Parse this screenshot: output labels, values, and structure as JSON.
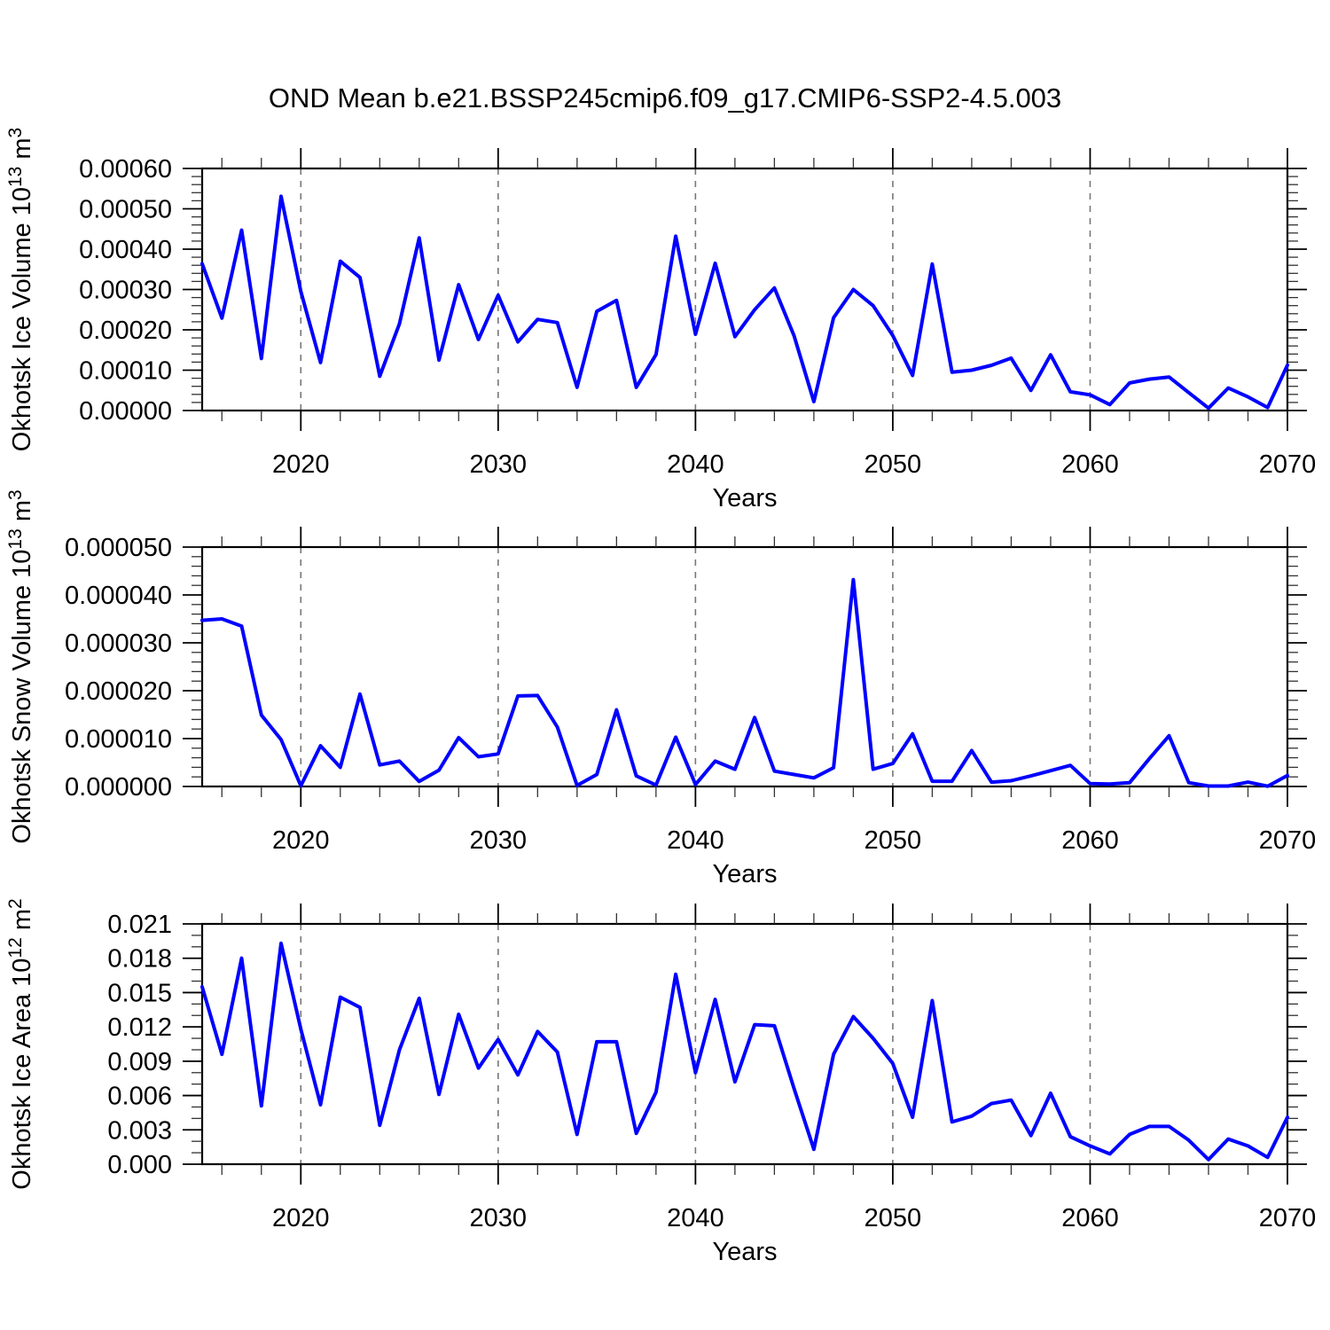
{
  "title": "OND Mean b.e21.BSSP245cmip6.f09_g17.CMIP6-SSP2-4.5.003",
  "line_color": "#0000ff",
  "gridline_color": "#777777",
  "axis_color": "#000000",
  "chart_data": {
    "type": "line",
    "x_label": "Years",
    "x_range": [
      2015,
      2070
    ],
    "x": [
      2015,
      2016,
      2017,
      2018,
      2019,
      2020,
      2021,
      2022,
      2023,
      2024,
      2025,
      2026,
      2027,
      2028,
      2029,
      2030,
      2031,
      2032,
      2033,
      2034,
      2035,
      2036,
      2037,
      2038,
      2039,
      2040,
      2041,
      2042,
      2043,
      2044,
      2045,
      2046,
      2047,
      2048,
      2049,
      2050,
      2051,
      2052,
      2053,
      2054,
      2055,
      2056,
      2057,
      2058,
      2059,
      2060,
      2061,
      2062,
      2063,
      2064,
      2065,
      2066,
      2067,
      2068,
      2069,
      2070
    ],
    "x_ticks_major": [
      2020,
      2030,
      2040,
      2050,
      2060,
      2070
    ],
    "x_minor_step": 2,
    "gridline_years": [
      2020,
      2030,
      2040,
      2050,
      2060
    ],
    "legend": "none",
    "grid": "vertical-dashed",
    "panels": [
      {
        "id": "ice-volume",
        "ylabel_text": "Okhotsk Ice Volume 10^13 m^3",
        "ylabel_parts": [
          {
            "t": "Okhotsk Ice Volume 10"
          },
          {
            "t": "13",
            "sup": true
          },
          {
            "t": " m"
          },
          {
            "t": "3",
            "sup": true
          }
        ],
        "ylim": [
          0,
          0.0006
        ],
        "ytick_step": 0.0001,
        "ytick_minor_step": 2e-05,
        "tick_decimals": 5,
        "values": [
          0.000364,
          0.000229,
          0.000447,
          0.000129,
          0.000531,
          0.000295,
          0.000119,
          0.00037,
          0.00033,
          8.5e-05,
          0.000215,
          0.000428,
          0.000125,
          0.000312,
          0.000176,
          0.000286,
          0.00017,
          0.000226,
          0.000218,
          5.75e-05,
          0.000246,
          0.000273,
          5.75e-05,
          0.000139,
          0.000432,
          0.000189,
          0.000365,
          0.000183,
          0.00025,
          0.000304,
          0.000185,
          2.2e-05,
          0.00023,
          0.0003,
          0.00026,
          0.000186,
          8.7e-05,
          0.000363,
          9.5e-05,
          0.0001,
          0.000112,
          0.00013,
          5e-05,
          0.000138,
          4.63e-05,
          3.9e-05,
          1.47e-05,
          6.84e-05,
          7.78e-05,
          8.3e-05,
          4.45e-05,
          5.9e-06,
          5.59e-05,
          3.38e-05,
          7.4e-06,
          0.0001125
        ]
      },
      {
        "id": "snow-volume",
        "ylabel_text": "Okhotsk Snow Volume 10^13 m^3",
        "ylabel_parts": [
          {
            "t": "Okhotsk Snow Volume 10"
          },
          {
            "t": "13",
            "sup": true
          },
          {
            "t": " m"
          },
          {
            "t": "3",
            "sup": true
          }
        ],
        "ylim": [
          0,
          5e-05
        ],
        "ytick_step": 1e-05,
        "ytick_minor_step": 2e-06,
        "tick_decimals": 6,
        "values": [
          3.47e-05,
          3.5e-05,
          3.35e-05,
          1.49e-05,
          9.8e-06,
          1.5e-07,
          8.5e-06,
          4e-06,
          1.93e-05,
          4.5e-06,
          5.3e-06,
          1.05e-06,
          3.4e-06,
          1.02e-05,
          6.2e-06,
          6.8e-06,
          1.89e-05,
          1.9e-05,
          1.24e-05,
          2e-07,
          2.5e-06,
          1.6e-05,
          2.2e-06,
          3e-07,
          1.03e-05,
          4e-07,
          5.3e-06,
          3.6e-06,
          1.44e-05,
          3.2e-06,
          2.5e-06,
          1.8e-06,
          3.9e-06,
          4.32e-05,
          3.6e-06,
          4.8e-06,
          1.1e-05,
          1.1e-06,
          1.1e-06,
          7.5e-06,
          9e-07,
          1.2e-06,
          2.2e-06,
          3.3e-06,
          4.4e-06,
          6e-07,
          5e-07,
          8e-07,
          5.8e-06,
          1.06e-05,
          8e-07,
          1e-07,
          1e-07,
          9e-07,
          5e-08,
          2.3e-06
        ]
      },
      {
        "id": "ice-area",
        "ylabel_text": "Okhotsk Ice Area 10^12 m^2",
        "ylabel_parts": [
          {
            "t": "Okhotsk Ice Area 10"
          },
          {
            "t": "12",
            "sup": true
          },
          {
            "t": " m"
          },
          {
            "t": "2",
            "sup": true
          }
        ],
        "ylim": [
          0,
          0.021
        ],
        "ytick_step": 0.003,
        "ytick_minor_step": 0.001,
        "tick_decimals": 3,
        "values": [
          0.0155,
          0.0096,
          0.018,
          0.0051,
          0.0193,
          0.0118,
          0.0052,
          0.0146,
          0.0137,
          0.0034,
          0.01,
          0.0145,
          0.0061,
          0.0131,
          0.0084,
          0.0109,
          0.0078,
          0.0116,
          0.0098,
          0.0026,
          0.0107,
          0.0107,
          0.0027,
          0.0063,
          0.0166,
          0.008,
          0.0144,
          0.0072,
          0.0122,
          0.0121,
          0.0066,
          0.0013,
          0.0096,
          0.0129,
          0.011,
          0.0088,
          0.0041,
          0.0143,
          0.0037,
          0.0042,
          0.0053,
          0.0056,
          0.0025,
          0.0062,
          0.0024,
          0.0016,
          0.0009,
          0.0026,
          0.0033,
          0.0033,
          0.0021,
          0.0004,
          0.0022,
          0.0016,
          0.0006,
          0.0041
        ]
      }
    ]
  }
}
